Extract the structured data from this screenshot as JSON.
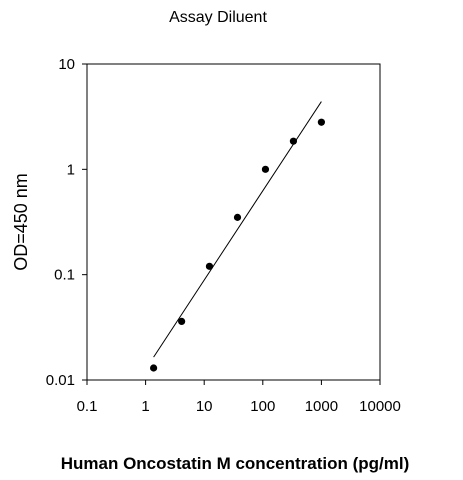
{
  "chart_data": {
    "type": "scatter",
    "title": "Assay Diluent",
    "xlabel": "Human Oncostatin M concentration (pg/ml)",
    "ylabel": "OD=450 nm",
    "x_scale": "log",
    "y_scale": "log",
    "xlim": [
      0.1,
      10000
    ],
    "ylim": [
      0.01,
      10
    ],
    "x_ticks": [
      "0.1",
      "1",
      "10",
      "100",
      "1000",
      "10000"
    ],
    "y_ticks": [
      "10",
      "1",
      "0.1",
      "0.01"
    ],
    "grid": false,
    "series": [
      {
        "x": [
          1.37,
          4.12,
          12.3,
          37,
          111,
          333,
          1000
        ],
        "y": [
          0.013,
          0.036,
          0.12,
          0.35,
          1.0,
          1.85,
          2.8
        ]
      }
    ],
    "fit_line": {
      "x": [
        1.37,
        1000
      ],
      "y": [
        0.0165,
        4.4
      ]
    },
    "colors": {
      "points": "#000000",
      "line": "#000000",
      "axes": "#000000"
    }
  }
}
